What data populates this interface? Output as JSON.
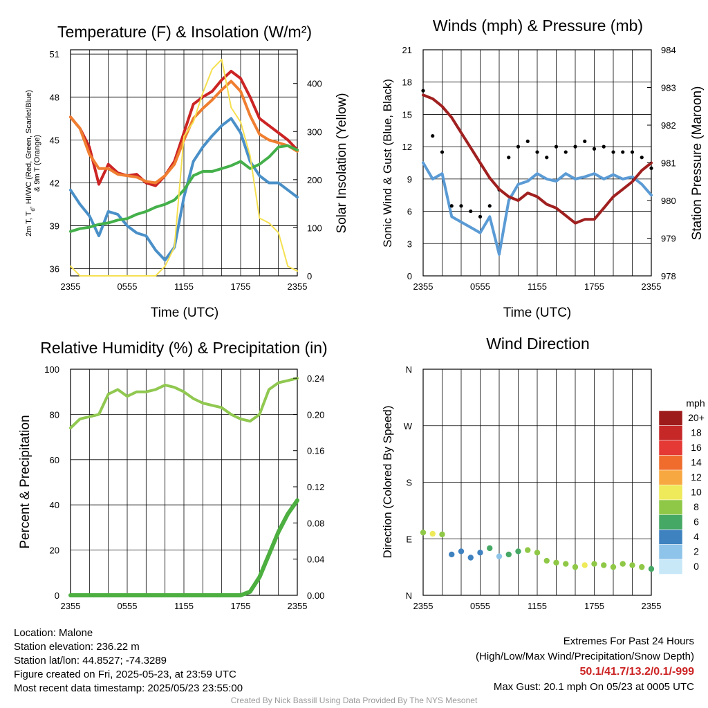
{
  "colors": {
    "temp": "#cc2424",
    "dewpoint": "#44b04a",
    "feels": "#4a90c8",
    "temp9m": "#f07e30",
    "insolation": "#f5e050",
    "wind": "#5b9bd5",
    "gust": "#000000",
    "pressure": "#a02020",
    "rh": "#90c850",
    "precip": "#4caf40"
  },
  "footer": {
    "location": "Location: Malone",
    "elevation": "Station elevation: 236.22 m",
    "latlon": "Station lat/lon: 44.8527; -74.3289",
    "created": "Figure created on Fri, 2025-05-23, at 23:59 UTC",
    "recent": "Most recent data timestamp: 2025/05/23 23:55:00",
    "extremes_title": "Extremes For Past 24 Hours",
    "extremes_subtitle": "(High/Low/Max Wind/Precipitation/Snow Depth)",
    "extremes_values": "50.1/41.7/13.2/0.1/-999",
    "max_gust": "Max Gust: 20.1 mph On 05/23 at 0005 UTC",
    "credit": "Created By Nick Bassill Using Data Provided By The NYS Mesonet"
  },
  "chart_data": [
    {
      "type": "line",
      "title": "Temperature (F) & Insolation (W/m²)",
      "xlabel": "Time (UTC)",
      "ylabel": "2m T, Td, HI/WC (Red, Green, Scarlet/Blue) & 9m T (Orange)",
      "y2label": "Solar Insolation (Yellow)",
      "x_ticks": [
        "2355",
        "0555",
        "1155",
        "1755",
        "2355"
      ],
      "ylim": [
        35.5,
        51.3
      ],
      "y_ticks": [
        36,
        39,
        42,
        45,
        48,
        51
      ],
      "y2lim": [
        0,
        470
      ],
      "y2_ticks": [
        0,
        100,
        200,
        300,
        400
      ],
      "grid": true,
      "hours": [
        0,
        1,
        2,
        3,
        4,
        5,
        6,
        7,
        8,
        9,
        10,
        11,
        12,
        13,
        14,
        15,
        16,
        17,
        18,
        19,
        20,
        21,
        22,
        23,
        24
      ],
      "series": [
        {
          "name": "2m T (Red)",
          "color": "#cc2424",
          "axis": "left",
          "values": [
            46.6,
            45.8,
            44.5,
            41.9,
            43.3,
            42.7,
            42.5,
            42.6,
            42.0,
            41.8,
            42.5,
            43.5,
            45.5,
            47.5,
            48.0,
            48.4,
            49.2,
            49.8,
            49.3,
            48.0,
            46.5,
            46.0,
            45.5,
            45.0,
            44.3
          ]
        },
        {
          "name": "9m T (Orange)",
          "color": "#f07e30",
          "axis": "left",
          "values": [
            46.6,
            45.8,
            44.0,
            43.0,
            43.0,
            42.6,
            42.5,
            42.4,
            42.1,
            42.0,
            42.5,
            43.3,
            45.0,
            46.5,
            47.2,
            47.8,
            48.5,
            49.1,
            48.4,
            46.7,
            45.4,
            45.0,
            44.8,
            44.6,
            44.2
          ]
        },
        {
          "name": "HI/WC (Blue)",
          "color": "#4a90c8",
          "axis": "left",
          "values": [
            41.5,
            40.5,
            39.7,
            38.3,
            40.0,
            39.8,
            39.0,
            38.5,
            38.3,
            37.3,
            36.6,
            37.5,
            41.0,
            43.5,
            44.5,
            45.3,
            46.0,
            46.5,
            45.5,
            43.5,
            42.5,
            42.0,
            42.0,
            41.5,
            41.0
          ]
        },
        {
          "name": "2m Td (Green)",
          "color": "#44b04a",
          "axis": "left",
          "values": [
            38.6,
            38.8,
            38.9,
            39.1,
            39.2,
            39.4,
            39.5,
            39.8,
            40.0,
            40.3,
            40.5,
            40.8,
            41.5,
            42.5,
            42.8,
            42.8,
            43.0,
            43.2,
            43.5,
            43.0,
            43.3,
            43.8,
            44.5,
            44.6,
            44.3
          ]
        },
        {
          "name": "Solar Insolation (Yellow)",
          "color": "#f5e050",
          "axis": "right",
          "values": [
            20,
            0,
            0,
            0,
            0,
            0,
            0,
            0,
            0,
            0,
            20,
            60,
            290,
            320,
            380,
            430,
            450,
            350,
            320,
            250,
            120,
            110,
            90,
            20,
            10
          ]
        }
      ]
    },
    {
      "type": "line",
      "title": "Winds (mph) & Pressure (mb)",
      "xlabel": "Time (UTC)",
      "ylabel": "Sonic Wind & Gust (Blue, Black)",
      "y2label": "Station Pressure (Maroon)",
      "x_ticks": [
        "2355",
        "0555",
        "1155",
        "1755",
        "2355"
      ],
      "ylim": [
        0,
        21
      ],
      "y_ticks": [
        0,
        3,
        6,
        9,
        12,
        15,
        18,
        21
      ],
      "y2lim": [
        978,
        984
      ],
      "y2_ticks": [
        978,
        979,
        980,
        981,
        982,
        983,
        984
      ],
      "grid": true,
      "hours": [
        0,
        1,
        2,
        3,
        4,
        5,
        6,
        7,
        8,
        9,
        10,
        11,
        12,
        13,
        14,
        15,
        16,
        17,
        18,
        19,
        20,
        21,
        22,
        23,
        24
      ],
      "series": [
        {
          "name": "Sonic Wind (Blue)",
          "color": "#5b9bd5",
          "axis": "left",
          "values": [
            10.5,
            9.0,
            9.5,
            5.5,
            5.0,
            4.5,
            4.0,
            5.5,
            2.0,
            7.0,
            8.5,
            8.8,
            9.5,
            9.0,
            8.8,
            9.5,
            9.0,
            9.2,
            9.5,
            9.0,
            9.4,
            9.0,
            9.2,
            8.5,
            7.5
          ]
        },
        {
          "name": "Gust (Black)",
          "color": "#000000",
          "axis": "left",
          "values": [
            17.2,
            13.0,
            11.5,
            6.5,
            6.5,
            6.0,
            5.5,
            6.5,
            8.0,
            11.0,
            12.0,
            12.5,
            11.5,
            11.0,
            12.0,
            11.5,
            12.0,
            12.5,
            11.8,
            12.0,
            11.5,
            11.5,
            11.5,
            11.0,
            10.0
          ]
        },
        {
          "name": "Station Pressure (Maroon)",
          "color": "#a02020",
          "axis": "right",
          "values": [
            982.8,
            982.7,
            982.5,
            982.2,
            981.8,
            981.4,
            981.0,
            980.6,
            980.3,
            980.1,
            980.0,
            980.2,
            980.1,
            979.9,
            979.8,
            979.6,
            979.4,
            979.5,
            979.5,
            979.8,
            980.1,
            980.3,
            980.5,
            980.8,
            981.0
          ]
        }
      ]
    },
    {
      "type": "line",
      "title": "Relative Humidity (%) & Precipitation (in)",
      "ylabel": "Percent & Precipitation",
      "x_ticks": [
        "2355",
        "0555",
        "1155",
        "1755",
        "2355"
      ],
      "ylim": [
        0,
        100
      ],
      "y_ticks": [
        0,
        20,
        40,
        60,
        80,
        100
      ],
      "y2lim": [
        0,
        0.25
      ],
      "y2_ticks": [
        "0.00",
        "0.04",
        "0.08",
        "0.12",
        "0.16",
        "0.20",
        "0.24"
      ],
      "grid": true,
      "hours": [
        0,
        1,
        2,
        3,
        4,
        5,
        6,
        7,
        8,
        9,
        10,
        11,
        12,
        13,
        14,
        15,
        16,
        17,
        18,
        19,
        20,
        21,
        22,
        23,
        24
      ],
      "series": [
        {
          "name": "RH",
          "color": "#90c850",
          "axis": "left",
          "values": [
            74,
            78,
            79,
            80,
            89,
            91,
            88,
            90,
            90,
            91,
            93,
            92,
            90,
            87,
            85,
            84,
            83,
            80,
            78,
            77,
            80,
            91,
            94,
            95,
            96
          ]
        },
        {
          "name": "Precipitation",
          "color": "#4caf40",
          "axis": "right",
          "values": [
            0,
            0,
            0,
            0,
            0,
            0,
            0,
            0,
            0,
            0,
            0,
            0,
            0,
            0,
            0,
            0,
            0,
            0,
            0,
            0.004,
            0.02,
            0.045,
            0.07,
            0.09,
            0.105
          ]
        }
      ]
    },
    {
      "type": "scatter",
      "title": "Wind Direction",
      "ylabel": "Direction (Colored By Speed)",
      "x_ticks": [
        "2355",
        "0555",
        "1155",
        "1755",
        "2355"
      ],
      "y_ticks": [
        "N",
        "E",
        "S",
        "W",
        "N"
      ],
      "ylim": [
        0,
        360
      ],
      "grid": true,
      "colorbar": {
        "title": "mph",
        "labels": [
          "20+",
          "18",
          "16",
          "14",
          "12",
          "10",
          "8",
          "6",
          "4",
          "2",
          "0"
        ],
        "colors": [
          "#9e1b1b",
          "#c62828",
          "#e53935",
          "#ef6c2c",
          "#f8a840",
          "#eeea5a",
          "#8fc846",
          "#45a864",
          "#3f82c0",
          "#8ec4ea",
          "#c8e8f8"
        ]
      },
      "hours": [
        0,
        1,
        2,
        3,
        4,
        5,
        6,
        7,
        8,
        9,
        10,
        11,
        12,
        13,
        14,
        15,
        16,
        17,
        18,
        19,
        20,
        21,
        22,
        23,
        24
      ],
      "direction": [
        100,
        98,
        97,
        65,
        70,
        60,
        68,
        75,
        62,
        65,
        70,
        72,
        68,
        55,
        52,
        50,
        45,
        48,
        50,
        48,
        45,
        50,
        48,
        45,
        42
      ],
      "speed": [
        9,
        10,
        8,
        5,
        4,
        5,
        4,
        6,
        3,
        6,
        7,
        9,
        9,
        8,
        9,
        8,
        9,
        10,
        9,
        8,
        9,
        8,
        9,
        8,
        7
      ]
    }
  ]
}
